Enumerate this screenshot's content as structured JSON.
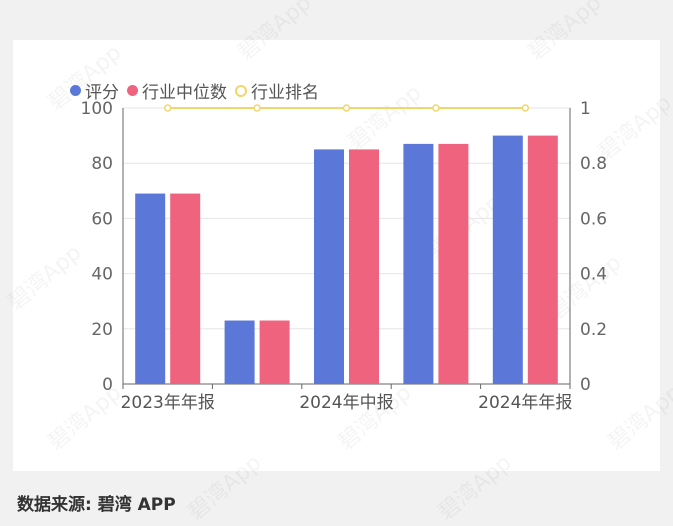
{
  "watermark": "碧湾App",
  "legend": {
    "score": "评分",
    "median": "行业中位数",
    "rank": "行业排名"
  },
  "source_label": "数据来源: 碧湾 APP",
  "colors": {
    "score": "#5b78d8",
    "median": "#f0637e",
    "rank": "#f2d66b",
    "grid": "#e6e6e6",
    "axis": "#666666"
  },
  "chart_data": {
    "type": "bar",
    "categories": [
      "2023年年报",
      "",
      "2024年中报",
      "",
      "2024年年报"
    ],
    "series": [
      {
        "name": "评分",
        "type": "bar",
        "axis": "left",
        "values": [
          69,
          23,
          85,
          87,
          90
        ]
      },
      {
        "name": "行业中位数",
        "type": "bar",
        "axis": "left",
        "values": [
          69,
          23,
          85,
          87,
          90
        ]
      },
      {
        "name": "行业排名",
        "type": "line",
        "axis": "right",
        "values": [
          1,
          1,
          1,
          1,
          1
        ]
      }
    ],
    "ylim_left": [
      0,
      100
    ],
    "yticks_left": [
      "0",
      "20",
      "40",
      "60",
      "80",
      "100"
    ],
    "ylim_right": [
      0,
      1
    ],
    "yticks_right": [
      "0",
      "0.2",
      "0.4",
      "0.6",
      "0.8",
      "1"
    ],
    "grid": true,
    "legend_position": "top-left"
  }
}
